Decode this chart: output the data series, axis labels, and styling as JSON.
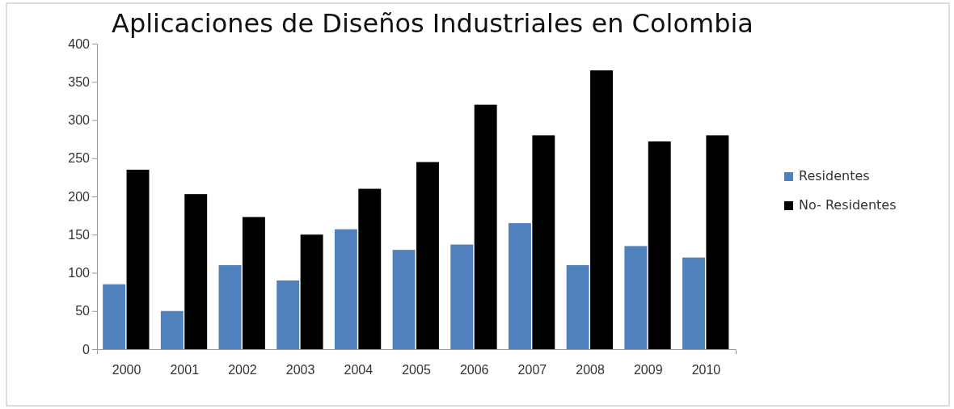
{
  "chart_data": {
    "type": "bar",
    "title": "Aplicaciones de Diseños Industriales en Colombia",
    "categories": [
      "2000",
      "2001",
      "2002",
      "2003",
      "2004",
      "2005",
      "2006",
      "2007",
      "2008",
      "2009",
      "2010"
    ],
    "series": [
      {
        "name": "Residentes",
        "color": "#4f81bd",
        "values": [
          85,
          50,
          110,
          90,
          157,
          130,
          137,
          165,
          110,
          135,
          120
        ]
      },
      {
        "name": "No- Residentes",
        "color": "#000000",
        "values": [
          235,
          203,
          173,
          150,
          210,
          245,
          320,
          280,
          365,
          272,
          280
        ]
      }
    ],
    "ylim": [
      0,
      400
    ],
    "yticks": [
      0,
      50,
      100,
      150,
      200,
      250,
      300,
      350,
      400
    ],
    "grid": false,
    "legend": "right"
  }
}
